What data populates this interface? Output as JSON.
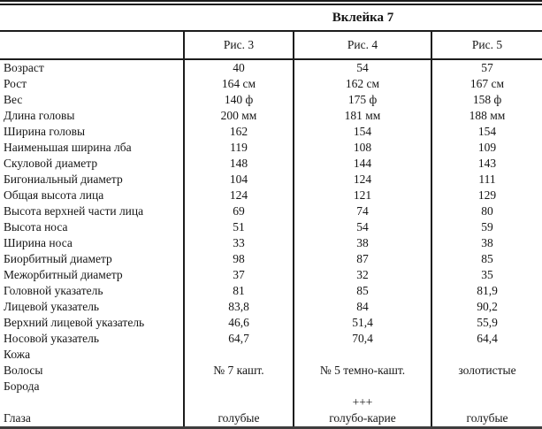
{
  "table": {
    "title": "Вклейка 7",
    "columns": [
      "Рис. 3",
      "Рис. 4",
      "Рис. 5"
    ],
    "rows": [
      {
        "label": "Возраст",
        "values": [
          "40",
          "54",
          "57"
        ]
      },
      {
        "label": "Рост",
        "values": [
          "164 см",
          "162 см",
          "167 см"
        ]
      },
      {
        "label": "Вес",
        "values": [
          "140 ф",
          "175 ф",
          "158 ф"
        ]
      },
      {
        "label": "Длина головы",
        "values": [
          "200 мм",
          "181 мм",
          "188 мм"
        ]
      },
      {
        "label": "Ширина головы",
        "values": [
          "162",
          "154",
          "154"
        ]
      },
      {
        "label": "Наименьшая ширина лба",
        "values": [
          "119",
          "108",
          "109"
        ]
      },
      {
        "label": "Скуловой диаметр",
        "values": [
          "148",
          "144",
          "143"
        ]
      },
      {
        "label": "Бигониальный диаметр",
        "values": [
          "104",
          "124",
          "111"
        ]
      },
      {
        "label": "Общая высота лица",
        "values": [
          "124",
          "121",
          "129"
        ]
      },
      {
        "label": "Высота верхней части лица",
        "values": [
          "69",
          "74",
          "80"
        ]
      },
      {
        "label": "Высота носа",
        "values": [
          "51",
          "54",
          "59"
        ]
      },
      {
        "label": "Ширина носа",
        "values": [
          "33",
          "38",
          "38"
        ]
      },
      {
        "label": "Биорбитный диаметр",
        "values": [
          "98",
          "87",
          "85"
        ]
      },
      {
        "label": "Межорбитный диаметр",
        "values": [
          "37",
          "32",
          "35"
        ]
      },
      {
        "label": "Головной указатель",
        "values": [
          "81",
          "85",
          "81,9"
        ]
      },
      {
        "label": "Лицевой указатель",
        "values": [
          "83,8",
          "84",
          "90,2"
        ]
      },
      {
        "label": "Верхний лицевой указатель",
        "values": [
          "46,6",
          "51,4",
          "55,9"
        ]
      },
      {
        "label": "Носовой указатель",
        "values": [
          "64,7",
          "70,4",
          "64,4"
        ]
      },
      {
        "label": "Кожа",
        "values": [
          "",
          "",
          ""
        ]
      },
      {
        "label": "Волосы",
        "values": [
          "№ 7 кашт.",
          "№ 5 темно-кашт.",
          "золотистые"
        ]
      },
      {
        "label": "Борода",
        "values": [
          "",
          "",
          ""
        ]
      },
      {
        "label": "",
        "values": [
          "",
          "+++",
          ""
        ]
      },
      {
        "label": "Глаза",
        "values": [
          "голубые",
          "голубо-карие",
          "голубые"
        ]
      }
    ]
  },
  "colors": {
    "background": "#ffffff",
    "text": "#151515",
    "rule": "#1c1c1c",
    "bottom_rule": "#3e3e3e"
  }
}
